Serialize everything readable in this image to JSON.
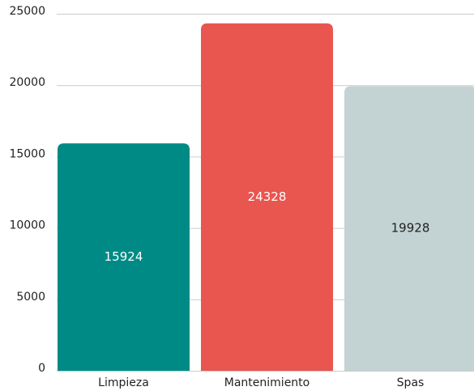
{
  "chart_data": {
    "type": "bar",
    "categories": [
      "Limpieza",
      "Mantenimiento",
      "Spas"
    ],
    "values": [
      15924,
      24328,
      19928
    ],
    "colors": [
      "#008a85",
      "#e9554f",
      "#c3d3d3"
    ],
    "label_colors": [
      "#ffffff",
      "#ffffff",
      "#222222"
    ],
    "ylim": [
      0,
      25000
    ],
    "yticks": [
      0,
      5000,
      10000,
      15000,
      20000,
      25000
    ],
    "grid": true
  }
}
